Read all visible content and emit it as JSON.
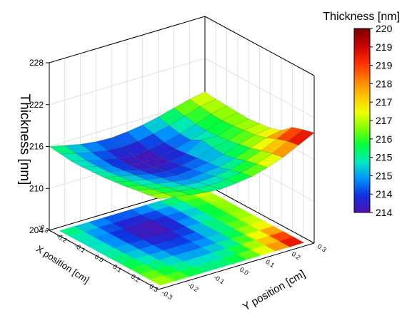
{
  "chart_data": {
    "type": "surface3d",
    "title": "",
    "zlabel": "Thickness [nm]",
    "xlabel": "X position [cm]",
    "ylabel": "Y position [cm]",
    "z_ticks": [
      "204",
      "210",
      "216",
      "222",
      "228"
    ],
    "x_ticks": [
      "0.3",
      "0.2",
      "0.1",
      "0.0",
      "-0.1",
      "-0.2",
      "-0.3"
    ],
    "y_ticks": [
      "-0.3",
      "-0.2",
      "-0.1",
      "0.0",
      "0.1",
      "0.2",
      "0.3"
    ],
    "zlim": [
      204,
      228
    ],
    "xlim": [
      -0.3,
      0.3
    ],
    "ylim": [
      -0.3,
      0.3
    ],
    "grid": true,
    "projection": "contour map on floor",
    "colorbar": {
      "title": "Thickness [nm]",
      "ticks": [
        "220",
        "219",
        "219",
        "218",
        "217",
        "217",
        "216",
        "215",
        "215",
        "214",
        "214"
      ],
      "colors": [
        "#7a0000",
        "#c80000",
        "#ff2a00",
        "#ff7a00",
        "#ffc000",
        "#f0ff00",
        "#80ff00",
        "#00ff40",
        "#00e8c0",
        "#0090ff",
        "#1030e0",
        "#5010b0"
      ]
    },
    "surface_rows": [
      [
        217.2,
        217.0,
        216.9,
        216.8,
        216.7,
        216.9,
        217.1,
        217.6,
        218.9,
        219.4,
        219.8
      ],
      [
        216.8,
        216.6,
        216.4,
        216.3,
        216.4,
        216.6,
        216.8,
        217.2,
        217.9,
        218.4,
        218.7
      ],
      [
        216.2,
        215.9,
        215.6,
        215.5,
        215.6,
        215.8,
        216.1,
        216.4,
        216.9,
        217.3,
        217.6
      ],
      [
        215.6,
        215.2,
        214.9,
        214.8,
        215.7,
        215.4,
        215.3,
        215.6,
        216.1,
        216.5,
        216.8
      ],
      [
        215.1,
        214.7,
        214.3,
        214.2,
        214.4,
        214.6,
        214.8,
        215.0,
        215.5,
        215.9,
        216.2
      ],
      [
        214.8,
        214.3,
        213.9,
        213.7,
        213.9,
        214.2,
        214.5,
        214.8,
        215.2,
        215.6,
        215.9
      ],
      [
        214.6,
        214.1,
        213.7,
        213.6,
        213.7,
        214.0,
        214.3,
        214.6,
        215.0,
        215.4,
        215.7
      ],
      [
        214.7,
        214.3,
        214.0,
        213.9,
        214.0,
        214.3,
        214.6,
        214.9,
        215.2,
        215.6,
        215.9
      ],
      [
        215.0,
        214.7,
        214.5,
        214.4,
        214.6,
        214.8,
        215.0,
        215.3,
        215.6,
        215.9,
        216.2
      ],
      [
        215.5,
        215.2,
        215.0,
        215.0,
        215.1,
        215.3,
        215.5,
        215.7,
        216.0,
        216.3,
        216.6
      ],
      [
        216.0,
        215.8,
        215.6,
        215.6,
        215.7,
        215.8,
        216.0,
        216.2,
        216.5,
        216.7,
        217.0
      ]
    ]
  }
}
